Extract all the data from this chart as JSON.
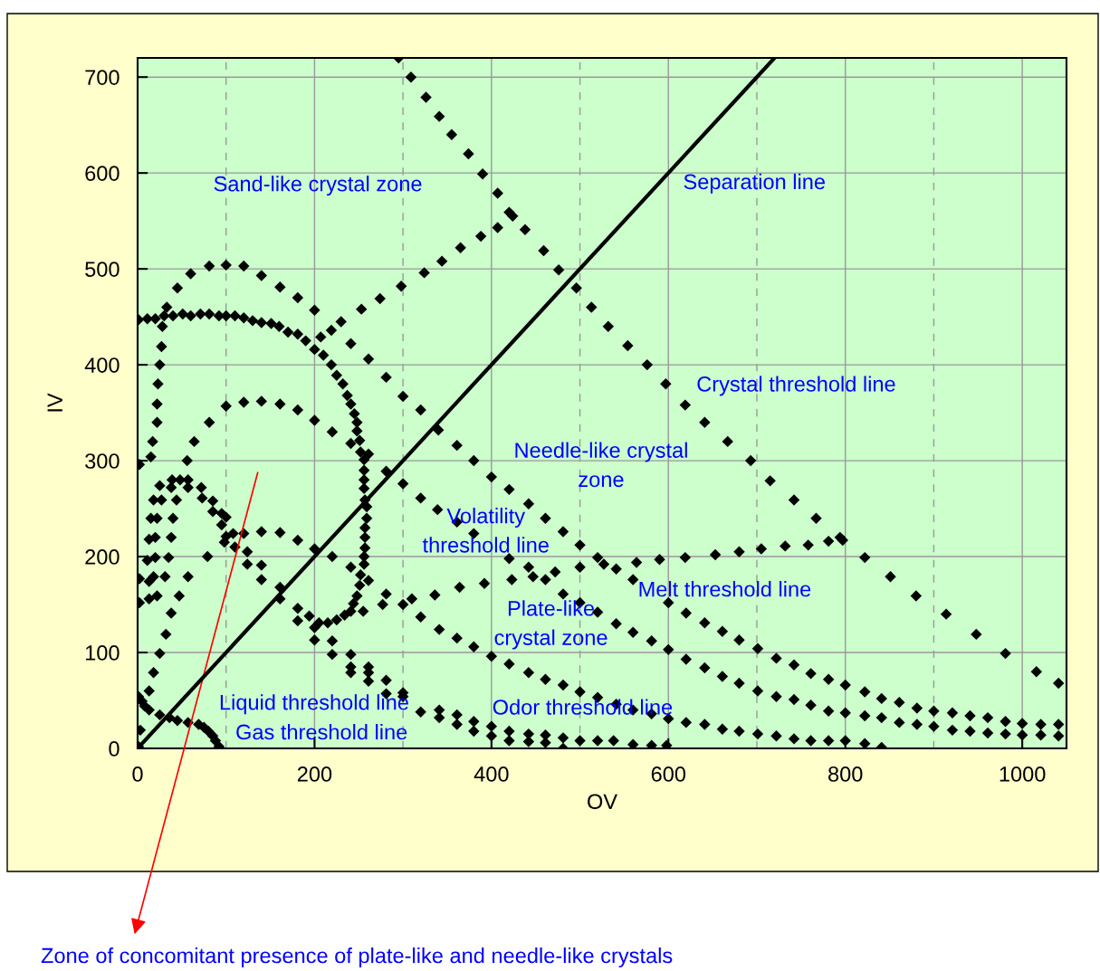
{
  "chart_data": {
    "type": "scatter",
    "xlabel": "OV",
    "ylabel": "IV",
    "xlim": [
      0,
      1050
    ],
    "ylim": [
      0,
      720
    ],
    "xticks": [
      0,
      200,
      400,
      600,
      800,
      1000
    ],
    "yticks": [
      0,
      100,
      200,
      300,
      400,
      500,
      600,
      700
    ],
    "grid": true,
    "legend": false,
    "series": [
      {
        "marker": "diamond",
        "color": "#000000",
        "x": [
          295,
          309,
          326,
          341,
          355,
          374,
          390,
          407,
          420,
          424,
          438,
          459,
          476,
          496,
          513,
          532,
          554,
          576,
          597,
          619,
          641,
          667,
          693,
          715,
          742,
          767,
          794,
          797,
          822,
          851,
          880,
          914,
          948,
          981,
          1016,
          1041,
          207,
          219,
          230,
          253,
          274,
          298,
          324,
          344,
          365,
          388,
          407,
          33,
          45,
          60,
          81,
          100,
          120,
          140,
          161,
          181,
          200,
          241,
          261,
          281,
          300,
          320,
          340,
          361,
          380,
          400,
          420,
          442,
          461,
          481,
          500,
          520,
          527,
          541,
          560,
          600,
          620,
          641,
          661,
          680,
          701,
          722,
          742,
          761,
          781,
          800,
          822,
          841,
          861,
          881,
          900,
          921,
          941,
          961,
          981,
          1000,
          1021,
          1041,
          564,
          590,
          619,
          653,
          680,
          705,
          732,
          758,
          781,
          364,
          392,
          423,
          442,
          447,
          461,
          472,
          481,
          500,
          500,
          520,
          541,
          560,
          581,
          600,
          620,
          641,
          661,
          680,
          701,
          722,
          742,
          761,
          781,
          800,
          822,
          841,
          861,
          881,
          900,
          921,
          941,
          961,
          981,
          1000,
          1021,
          1041,
          361,
          380,
          400,
          420,
          442,
          461,
          481,
          500,
          520,
          541,
          560,
          581,
          600,
          620,
          641,
          661,
          680,
          701,
          722,
          742,
          761,
          781,
          800,
          822,
          841,
          361,
          361,
          380,
          380,
          400,
          400,
          420,
          420,
          442,
          442,
          461,
          461,
          481,
          481,
          500,
          520,
          538,
          560,
          581,
          598,
          281,
          300,
          320,
          339,
          361,
          380,
          420,
          1,
          11,
          20,
          30,
          40,
          51,
          60,
          71,
          81,
          92,
          100,
          110,
          120,
          130,
          140,
          151,
          160,
          170,
          181,
          190,
          200,
          210,
          219,
          225,
          232,
          237,
          241,
          245,
          248,
          248,
          241,
          251,
          252,
          261,
          256,
          256,
          256,
          256,
          257,
          259,
          259,
          257,
          257,
          257,
          256,
          256,
          252,
          261,
          251,
          248,
          244,
          241,
          255,
          234,
          225,
          215,
          205,
          200,
          194,
          181,
          181,
          28,
          27,
          25,
          23,
          22,
          22,
          17,
          15,
          2,
          100,
          120,
          140,
          161,
          181,
          200,
          220,
          220,
          241,
          161,
          161,
          140,
          140,
          124,
          124,
          120,
          140,
          161,
          181,
          200,
          281,
          277,
          300,
          310,
          336,
          320,
          341,
          200,
          220,
          220,
          241,
          241,
          241,
          261,
          261,
          261,
          281,
          281,
          300,
          300,
          320,
          341,
          341,
          64,
          56,
          81,
          79,
          57,
          47,
          38,
          32,
          25,
          18,
          13,
          1,
          5,
          8,
          13,
          25,
          36,
          45,
          57,
          69,
          75,
          80,
          85,
          88,
          92,
          3,
          1,
          39,
          48,
          57,
          38,
          57,
          25,
          18,
          27,
          44,
          72,
          73,
          85,
          85,
          95,
          100,
          95,
          100,
          98,
          108,
          110,
          15,
          22,
          40,
          13,
          20,
          38,
          11,
          20,
          35,
          2,
          13,
          18,
          31,
          13,
          22,
          2
        ],
        "values": [
          720,
          700,
          679,
          659,
          640,
          620,
          599,
          579,
          559,
          555,
          541,
          519,
          499,
          480,
          460,
          440,
          420,
          400,
          380,
          358,
          340,
          320,
          300,
          279,
          259,
          240,
          220,
          217,
          199,
          179,
          159,
          140,
          119,
          99,
          80,
          68,
          429,
          436,
          445,
          458,
          469,
          482,
          496,
          508,
          522,
          534,
          543,
          460,
          480,
          495,
          503,
          504,
          503,
          493,
          481,
          470,
          457,
          422,
          406,
          387,
          367,
          353,
          332,
          316,
          300,
          283,
          270,
          255,
          240,
          226,
          212,
          199,
          192,
          187,
          176,
          152,
          141,
          131,
          122,
          113,
          104,
          94,
          87,
          78,
          72,
          66,
          59,
          52,
          48,
          42,
          39,
          37,
          34,
          32,
          28,
          26,
          25,
          25,
          194,
          197,
          199,
          202,
          205,
          208,
          211,
          212,
          216,
          168,
          172,
          176,
          189,
          179,
          176,
          184,
          161,
          189,
          152,
          142,
          130,
          121,
          112,
          103,
          93,
          84,
          75,
          68,
          60,
          54,
          51,
          45,
          39,
          37,
          34,
          32,
          27,
          25,
          23,
          19,
          18,
          16,
          15,
          14,
          14,
          13,
          115,
          106,
          96,
          88,
          79,
          72,
          66,
          59,
          53,
          46,
          40,
          36,
          31,
          27,
          25,
          20,
          18,
          15,
          13,
          10,
          8,
          8,
          8,
          5,
          1,
          35,
          25,
          28,
          18,
          23,
          13,
          18,
          8,
          15,
          7,
          14,
          6,
          11,
          0,
          8,
          8,
          8,
          4,
          3,
          3,
          289,
          276,
          261,
          249,
          236,
          224,
          198,
          447,
          448,
          448,
          451,
          451,
          453,
          451,
          453,
          453,
          451,
          451,
          451,
          449,
          446,
          444,
          443,
          440,
          434,
          432,
          425,
          416,
          410,
          400,
          389,
          380,
          368,
          359,
          349,
          340,
          331,
          318,
          321,
          309,
          307,
          301,
          290,
          280,
          271,
          259,
          252,
          240,
          230,
          220,
          209,
          200,
          192,
          181,
          175,
          170,
          159,
          151,
          143,
          143,
          139,
          134,
          131,
          131,
          126,
          138,
          146,
          133,
          440,
          419,
          400,
          380,
          359,
          340,
          320,
          304,
          296,
          357,
          361,
          362,
          359,
          353,
          342,
          330,
          200,
          189,
          168,
          156,
          191,
          176,
          192,
          205,
          224,
          226,
          225,
          217,
          208,
          161,
          150,
          150,
          156,
          160,
          137,
          124,
          113,
          112,
          98,
          98,
          85,
          79,
          85,
          79,
          70,
          71,
          57,
          58,
          54,
          38,
          40,
          32,
          320,
          300,
          340,
          200,
          179,
          159,
          141,
          119,
          99,
          79,
          60,
          54,
          49,
          44,
          40,
          35,
          32,
          29,
          27,
          25,
          22,
          18,
          13,
          8,
          2,
          19,
          2,
          280,
          280,
          280,
          272,
          272,
          274,
          259,
          259,
          259,
          272,
          261,
          258,
          247,
          245,
          241,
          233,
          221,
          215,
          224,
          210,
          240,
          240,
          240,
          218,
          220,
          220,
          196,
          199,
          199,
          177,
          174,
          179,
          179,
          156,
          159,
          152
        ]
      },
      {
        "type": "line",
        "color": "#000000",
        "x": [
          0,
          720
        ],
        "values": [
          0,
          720
        ]
      }
    ],
    "annotations": [
      "Sand-like crystal zone",
      "Separation line",
      "Crystal threshold line",
      "Needle-like crystal\nzone",
      "Volatility\nthreshold line",
      "Melt threshold line",
      "Plate-like\ncrystal zone",
      "Liquid threshold line",
      "Gas threshold line",
      "Odor threshold line",
      "Zone of concomitant presence of plate-like and needle-like crystals"
    ]
  }
}
